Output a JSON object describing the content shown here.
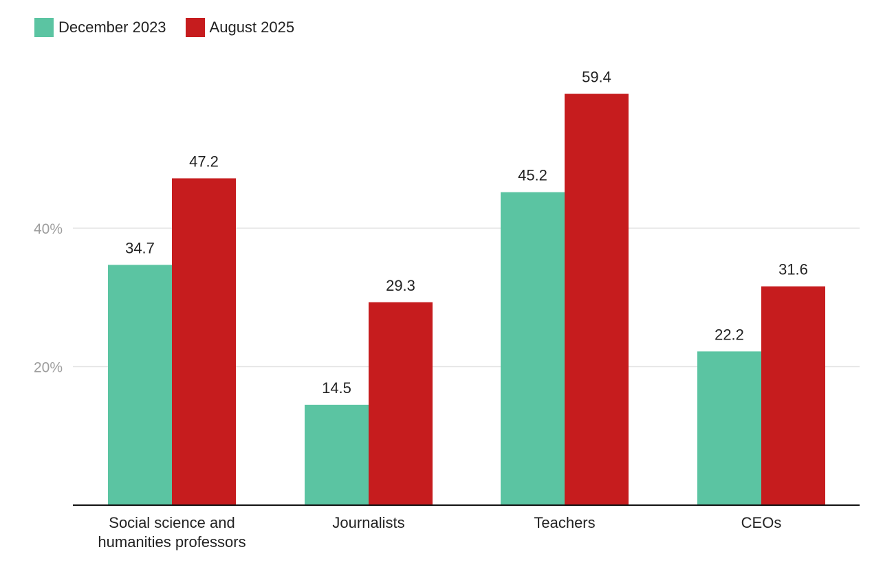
{
  "chart_data": {
    "type": "bar",
    "categories": [
      [
        "Social science and",
        "humanities professors"
      ],
      [
        "Journalists"
      ],
      [
        "Teachers"
      ],
      [
        "CEOs"
      ]
    ],
    "series": [
      {
        "name": "December 2023",
        "color": "#5bc4a2",
        "values": [
          34.7,
          14.5,
          45.2,
          22.2
        ],
        "labels": [
          "34.7",
          "14.5",
          "45.2",
          "22.2"
        ]
      },
      {
        "name": "August 2025",
        "color": "#c61c1e",
        "values": [
          47.2,
          29.3,
          59.4,
          31.6
        ],
        "labels": [
          "47.2",
          "29.3",
          "59.4",
          "31.6"
        ]
      }
    ],
    "ylim": [
      0,
      60
    ],
    "yticks": [
      {
        "value": 20,
        "label": "20%"
      },
      {
        "value": 40,
        "label": "40%"
      }
    ],
    "grid": true,
    "legend_position": "top-left",
    "title": "",
    "xlabel": "",
    "ylabel": ""
  }
}
